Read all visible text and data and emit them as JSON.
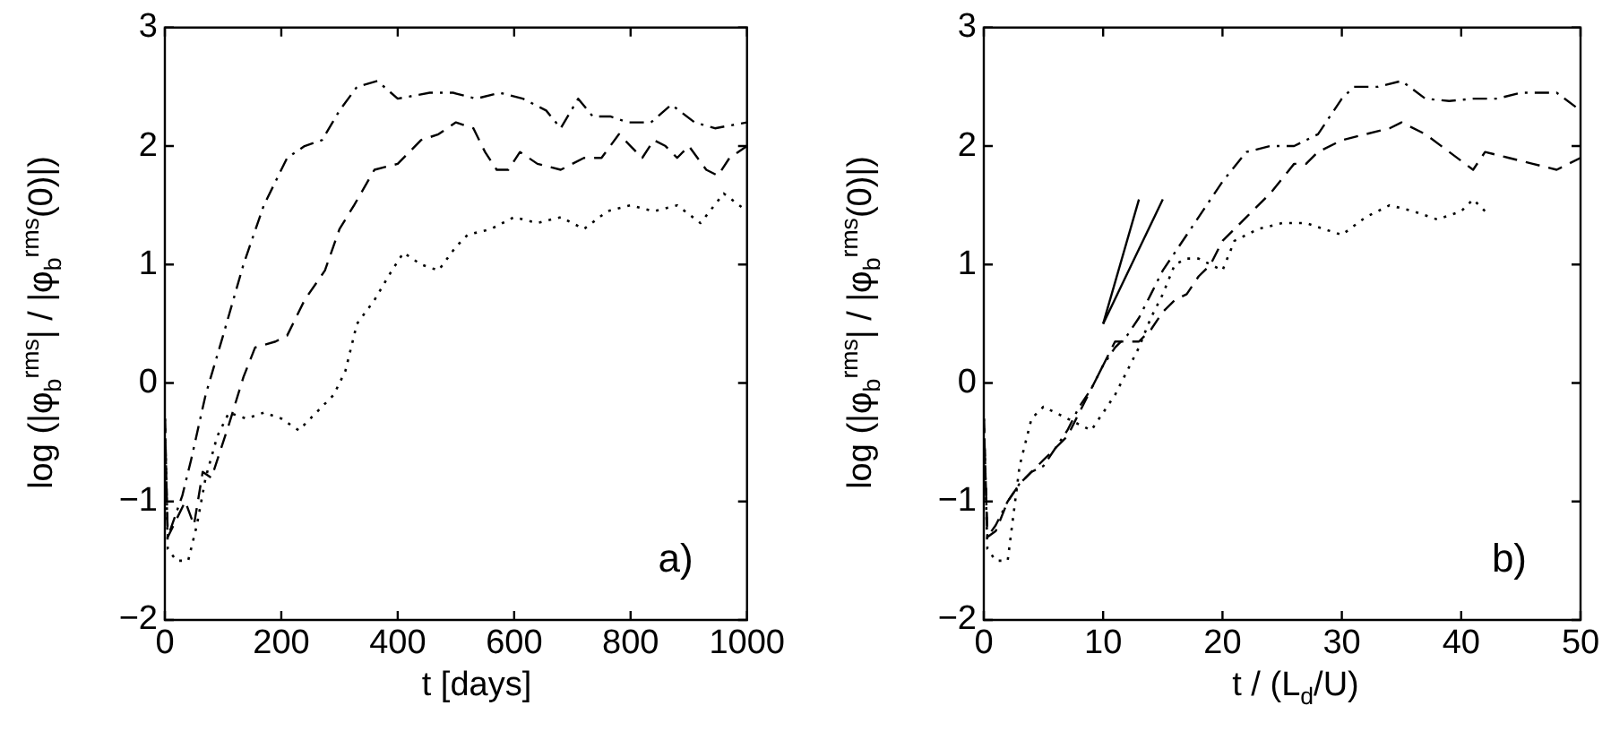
{
  "chart_data": [
    {
      "type": "line",
      "xlabel": "t [days]",
      "ylabel": "log (|φ$_{b}$$^{rms}$| / |φ$_{b}$$^{rms}$(0)|)",
      "annotations": [
        "a)"
      ],
      "xlim": [
        0,
        1000
      ],
      "ylim": [
        -2,
        3
      ],
      "xticks": [
        0,
        200,
        400,
        600,
        800,
        1000
      ],
      "yticks": [
        -2,
        -1,
        0,
        1,
        2,
        3
      ],
      "grid": false,
      "legend": false,
      "series": [
        {
          "color": "#000000",
          "line_style": "dashdot",
          "x": [
            0,
            5,
            30,
            45,
            70,
            100,
            135,
            170,
            210,
            240,
            270,
            300,
            330,
            365,
            400,
            455,
            495,
            535,
            575,
            615,
            655,
            680,
            710,
            735,
            765,
            795,
            835,
            870,
            910,
            945,
            1000
          ],
          "values": [
            -0.3,
            -1.3,
            -0.95,
            -0.65,
            -0.1,
            0.4,
            1.0,
            1.5,
            1.9,
            2.0,
            2.05,
            2.3,
            2.5,
            2.55,
            2.4,
            2.45,
            2.45,
            2.4,
            2.45,
            2.4,
            2.3,
            2.15,
            2.4,
            2.25,
            2.25,
            2.2,
            2.2,
            2.35,
            2.2,
            2.15,
            2.2
          ]
        },
        {
          "color": "#000000",
          "line_style": "dashed",
          "x": [
            0,
            5,
            20,
            35,
            50,
            65,
            80,
            110,
            135,
            155,
            190,
            210,
            240,
            275,
            300,
            325,
            360,
            400,
            440,
            470,
            500,
            530,
            550,
            570,
            590,
            610,
            640,
            680,
            720,
            750,
            780,
            800,
            820,
            840,
            860,
            880,
            900,
            930,
            950,
            970,
            1000
          ],
          "values": [
            -0.3,
            -1.3,
            -1.15,
            -1.0,
            -1.2,
            -0.75,
            -0.8,
            -0.35,
            0.05,
            0.3,
            0.35,
            0.4,
            0.7,
            0.95,
            1.3,
            1.5,
            1.8,
            1.85,
            2.05,
            2.1,
            2.2,
            2.15,
            1.95,
            1.8,
            1.8,
            1.95,
            1.85,
            1.8,
            1.9,
            1.9,
            2.1,
            2.0,
            1.9,
            2.05,
            2.0,
            1.9,
            2.0,
            1.8,
            1.75,
            1.9,
            2.0
          ]
        },
        {
          "color": "#000000",
          "line_style": "dotted",
          "x": [
            0,
            5,
            20,
            40,
            55,
            70,
            90,
            110,
            140,
            170,
            200,
            230,
            260,
            290,
            310,
            330,
            360,
            390,
            410,
            440,
            470,
            500,
            520,
            560,
            600,
            640,
            680,
            720,
            760,
            800,
            840,
            880,
            920,
            960,
            1000
          ],
          "values": [
            -0.3,
            -1.4,
            -1.5,
            -1.5,
            -1.2,
            -0.8,
            -0.45,
            -0.25,
            -0.3,
            -0.25,
            -0.3,
            -0.4,
            -0.25,
            -0.1,
            0.1,
            0.5,
            0.7,
            0.95,
            1.1,
            1.0,
            0.95,
            1.15,
            1.25,
            1.3,
            1.4,
            1.35,
            1.4,
            1.3,
            1.45,
            1.5,
            1.45,
            1.5,
            1.35,
            1.6,
            1.45
          ]
        }
      ]
    },
    {
      "type": "line",
      "xlabel": "t / (L$_{d}$/U)",
      "ylabel": "log (|φ$_{b}$$^{rms}$| / |φ$_{b}$$^{rms}$(0)|)",
      "annotations": [
        "b)"
      ],
      "xlim": [
        0,
        50
      ],
      "ylim": [
        -2,
        3
      ],
      "xticks": [
        0,
        10,
        20,
        30,
        40,
        50
      ],
      "yticks": [
        -2,
        -1,
        0,
        1,
        2,
        3
      ],
      "grid": false,
      "legend": false,
      "series": [
        {
          "color": "#000000",
          "line_style": "dashdot",
          "x": [
            0,
            0.3,
            1,
            2,
            3,
            4,
            5,
            6,
            7,
            8,
            9,
            10,
            11,
            12,
            13,
            14,
            15,
            16,
            17,
            18,
            19,
            20,
            22,
            24,
            26,
            28,
            30,
            31,
            33,
            35,
            37,
            39,
            41,
            43,
            45,
            47,
            48,
            50
          ],
          "values": [
            -0.3,
            -1.3,
            -1.2,
            -1.0,
            -0.85,
            -0.75,
            -0.7,
            -0.55,
            -0.4,
            -0.2,
            -0.05,
            0.15,
            0.3,
            0.4,
            0.55,
            0.75,
            0.95,
            1.1,
            1.25,
            1.4,
            1.55,
            1.7,
            1.95,
            2.0,
            2.0,
            2.1,
            2.4,
            2.5,
            2.5,
            2.55,
            2.4,
            2.38,
            2.4,
            2.4,
            2.45,
            2.45,
            2.45,
            2.3
          ]
        },
        {
          "color": "#000000",
          "line_style": "dashed",
          "x": [
            0,
            0.3,
            1,
            2,
            3,
            4,
            5,
            6,
            7,
            8,
            9,
            10,
            11,
            12,
            13,
            14,
            15,
            16,
            17,
            18,
            19,
            20,
            22,
            24,
            26,
            27,
            28,
            30,
            32,
            34,
            35,
            37,
            39,
            41,
            42,
            44,
            46,
            48,
            50
          ],
          "values": [
            -0.3,
            -1.3,
            -1.25,
            -1.0,
            -0.85,
            -0.75,
            -0.65,
            -0.55,
            -0.45,
            -0.25,
            -0.05,
            0.15,
            0.35,
            0.35,
            0.35,
            0.45,
            0.6,
            0.7,
            0.75,
            0.9,
            1.0,
            1.2,
            1.4,
            1.6,
            1.85,
            1.85,
            1.95,
            2.05,
            2.1,
            2.15,
            2.2,
            2.1,
            1.95,
            1.8,
            1.95,
            1.9,
            1.85,
            1.8,
            1.9
          ]
        },
        {
          "color": "#000000",
          "line_style": "dotted",
          "x": [
            0,
            0.3,
            1,
            2,
            3,
            4,
            5,
            6,
            7,
            8,
            9,
            10,
            11,
            12,
            13,
            14,
            15,
            16,
            17,
            18,
            19,
            20,
            21,
            23,
            25,
            27,
            30,
            32,
            34,
            36,
            38,
            40,
            41,
            42
          ],
          "values": [
            -0.3,
            -1.4,
            -1.5,
            -1.5,
            -0.7,
            -0.3,
            -0.2,
            -0.25,
            -0.3,
            -0.35,
            -0.4,
            -0.25,
            -0.1,
            0.1,
            0.3,
            0.55,
            0.75,
            1.0,
            1.05,
            1.05,
            1.0,
            0.95,
            1.2,
            1.3,
            1.35,
            1.35,
            1.25,
            1.4,
            1.5,
            1.45,
            1.38,
            1.45,
            1.55,
            1.45
          ]
        },
        {
          "type": "line",
          "color": "#000000",
          "line_style": "solid",
          "x": [
            10,
            13
          ],
          "values": [
            0.5,
            1.55
          ]
        },
        {
          "type": "line",
          "color": "#000000",
          "line_style": "solid",
          "x": [
            10,
            15
          ],
          "values": [
            0.5,
            1.55
          ]
        }
      ]
    }
  ]
}
